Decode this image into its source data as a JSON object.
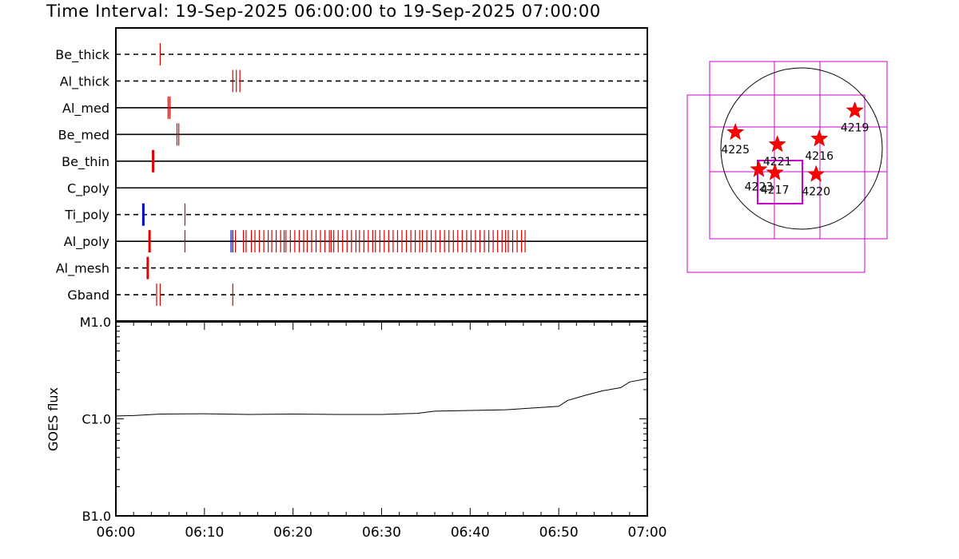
{
  "title": "Time Interval: 19-Sep-2025 06:00:00 to 19-Sep-2025 07:00:00",
  "colors": {
    "axis": "#000000",
    "event": "#e00000",
    "event_alt": "#0000cc",
    "goes": "#000000",
    "fov": "#cc00cc",
    "star": "#ff0000"
  },
  "chart_data": [
    {
      "type": "timeline",
      "x_range": [
        "06:00",
        "07:00"
      ],
      "rows": [
        {
          "label": "Be_thick",
          "style": "dashed",
          "events": [
            {
              "t": 5.0,
              "color": "red"
            }
          ]
        },
        {
          "label": "Al_thick",
          "style": "dashed",
          "events": [
            {
              "t": 13.2,
              "color": "red"
            },
            {
              "t": 13.6,
              "color": "red"
            },
            {
              "t": 14.0,
              "color": "red"
            }
          ]
        },
        {
          "label": "Al_med",
          "style": "solid",
          "events": [
            {
              "t": 5.9,
              "color": "red"
            },
            {
              "t": 6.1,
              "color": "red"
            }
          ]
        },
        {
          "label": "Be_med",
          "style": "solid",
          "events": [
            {
              "t": 6.9,
              "color": "red"
            },
            {
              "t": 7.1,
              "color": "red"
            }
          ]
        },
        {
          "label": "Be_thin",
          "style": "solid",
          "events": [
            {
              "t": 4.2,
              "color": "red",
              "thick": true
            }
          ]
        },
        {
          "label": "C_poly",
          "style": "solid",
          "events": []
        },
        {
          "label": "Ti_poly",
          "style": "dashed",
          "events": [
            {
              "t": 3.1,
              "color": "blue",
              "thick": true
            },
            {
              "t": 7.8,
              "color": "red"
            }
          ]
        },
        {
          "label": "Al_poly",
          "style": "solid",
          "events": [
            {
              "t": 3.8,
              "color": "red",
              "thick": true
            },
            {
              "t": 7.8,
              "color": "red"
            },
            {
              "t": 13.0,
              "color": "blue"
            },
            {
              "t": 13.2,
              "color": "blue"
            },
            {
              "t": 13.5,
              "color": "red"
            },
            {
              "t": 14.4,
              "color": "red"
            },
            {
              "t": 14.7,
              "color": "red"
            },
            {
              "t": 15.3,
              "color": "red"
            },
            {
              "t": 15.7,
              "color": "red"
            },
            {
              "t": 16.2,
              "color": "red"
            },
            {
              "t": 16.7,
              "color": "red"
            },
            {
              "t": 17.2,
              "color": "red"
            },
            {
              "t": 17.6,
              "color": "red"
            },
            {
              "t": 18.1,
              "color": "red"
            },
            {
              "t": 18.6,
              "color": "red"
            },
            {
              "t": 19.0,
              "color": "red"
            },
            {
              "t": 19.2,
              "color": "red"
            },
            {
              "t": 19.7,
              "color": "red"
            },
            {
              "t": 20.2,
              "color": "red"
            },
            {
              "t": 20.7,
              "color": "red"
            },
            {
              "t": 21.2,
              "color": "red"
            },
            {
              "t": 21.6,
              "color": "red"
            },
            {
              "t": 22.1,
              "color": "red"
            },
            {
              "t": 22.6,
              "color": "red"
            },
            {
              "t": 23.1,
              "color": "red"
            },
            {
              "t": 23.6,
              "color": "red"
            },
            {
              "t": 24.1,
              "color": "red"
            },
            {
              "t": 24.3,
              "color": "red"
            },
            {
              "t": 24.6,
              "color": "red"
            },
            {
              "t": 25.1,
              "color": "red"
            },
            {
              "t": 25.6,
              "color": "red"
            },
            {
              "t": 26.1,
              "color": "red"
            },
            {
              "t": 26.6,
              "color": "red"
            },
            {
              "t": 27.1,
              "color": "red"
            },
            {
              "t": 27.5,
              "color": "red"
            },
            {
              "t": 28.0,
              "color": "red"
            },
            {
              "t": 28.5,
              "color": "red"
            },
            {
              "t": 29.0,
              "color": "red"
            },
            {
              "t": 29.3,
              "color": "red"
            },
            {
              "t": 29.8,
              "color": "red"
            },
            {
              "t": 30.3,
              "color": "red"
            },
            {
              "t": 30.8,
              "color": "red"
            },
            {
              "t": 31.3,
              "color": "red"
            },
            {
              "t": 31.8,
              "color": "red"
            },
            {
              "t": 32.3,
              "color": "red"
            },
            {
              "t": 32.8,
              "color": "red"
            },
            {
              "t": 33.3,
              "color": "red"
            },
            {
              "t": 33.8,
              "color": "red"
            },
            {
              "t": 34.3,
              "color": "red"
            },
            {
              "t": 34.6,
              "color": "red"
            },
            {
              "t": 35.1,
              "color": "red"
            },
            {
              "t": 35.6,
              "color": "red"
            },
            {
              "t": 36.1,
              "color": "red"
            },
            {
              "t": 36.6,
              "color": "red"
            },
            {
              "t": 37.1,
              "color": "red"
            },
            {
              "t": 37.6,
              "color": "red"
            },
            {
              "t": 38.1,
              "color": "red"
            },
            {
              "t": 38.6,
              "color": "red"
            },
            {
              "t": 39.1,
              "color": "red"
            },
            {
              "t": 39.6,
              "color": "red"
            },
            {
              "t": 40.1,
              "color": "red"
            },
            {
              "t": 40.6,
              "color": "red"
            },
            {
              "t": 41.1,
              "color": "red"
            },
            {
              "t": 41.6,
              "color": "red"
            },
            {
              "t": 42.1,
              "color": "red"
            },
            {
              "t": 42.6,
              "color": "red"
            },
            {
              "t": 43.1,
              "color": "red"
            },
            {
              "t": 43.6,
              "color": "red"
            },
            {
              "t": 44.0,
              "color": "red"
            },
            {
              "t": 44.3,
              "color": "red"
            },
            {
              "t": 44.8,
              "color": "red"
            },
            {
              "t": 45.3,
              "color": "red"
            },
            {
              "t": 45.8,
              "color": "red"
            },
            {
              "t": 46.2,
              "color": "red"
            }
          ]
        },
        {
          "label": "Al_mesh",
          "style": "dashed",
          "events": [
            {
              "t": 3.6,
              "color": "red",
              "thick": true
            }
          ]
        },
        {
          "label": "Gband",
          "style": "dashed",
          "events": [
            {
              "t": 4.6,
              "color": "red"
            },
            {
              "t": 5.0,
              "color": "red"
            },
            {
              "t": 13.2,
              "color": "red"
            }
          ]
        }
      ]
    },
    {
      "type": "line",
      "scale": "log",
      "ylabel": "GOES flux",
      "y_ticks": [
        "B1.0",
        "C1.0",
        "M1.0"
      ],
      "x_ticks": [
        "06:00",
        "06:10",
        "06:20",
        "06:30",
        "06:40",
        "06:50",
        "07:00"
      ],
      "ylim": [
        1e-07,
        1e-05
      ],
      "x": [
        0,
        2,
        5,
        10,
        15,
        20,
        25,
        30,
        34,
        36,
        40,
        44,
        50,
        51,
        53,
        55,
        57,
        58,
        60
      ],
      "y": [
        1.07e-06,
        1.08e-06,
        1.12e-06,
        1.13e-06,
        1.11e-06,
        1.12e-06,
        1.11e-06,
        1.11e-06,
        1.14e-06,
        1.2e-06,
        1.22e-06,
        1.24e-06,
        1.35e-06,
        1.55e-06,
        1.75e-06,
        1.95e-06,
        2.1e-06,
        2.4e-06,
        2.6e-06
      ]
    },
    {
      "type": "scatter",
      "description": "solar disk with active regions",
      "regions": [
        {
          "label": "4225",
          "lon": -0.82,
          "lat": 0.2
        },
        {
          "label": "4221",
          "lon": -0.3,
          "lat": 0.05
        },
        {
          "label": "4216",
          "lon": 0.22,
          "lat": 0.12
        },
        {
          "label": "4219",
          "lon": 0.66,
          "lat": 0.47
        },
        {
          "label": "4223",
          "lon": -0.53,
          "lat": -0.26
        },
        {
          "label": "4217",
          "lon": -0.33,
          "lat": -0.3
        },
        {
          "label": "4220",
          "lon": 0.18,
          "lat": -0.32
        }
      ]
    }
  ]
}
